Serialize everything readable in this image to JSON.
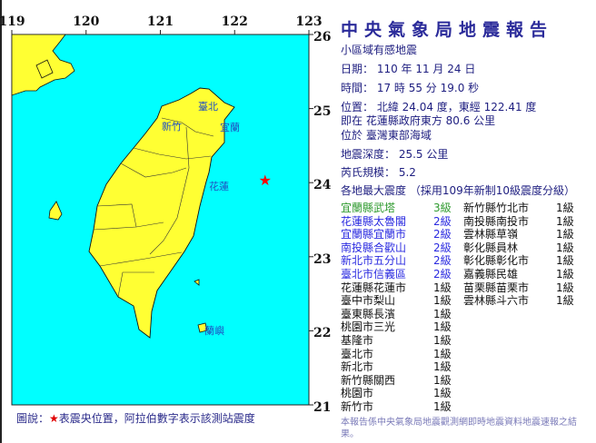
{
  "map": {
    "lon_ticks": [
      "119",
      "120",
      "121",
      "122",
      "123"
    ],
    "lat_ticks": [
      "26",
      "25",
      "24",
      "23",
      "22",
      "21"
    ],
    "sea_color": "#00ffff",
    "land_color": "#ffff33",
    "epicenter_color": "#ff0000",
    "epicenter_icon": "red-star-icon",
    "epicenter": {
      "lat": 24.04,
      "lon": 122.41
    },
    "place_labels": [
      "臺北",
      "新竹",
      "宜蘭",
      "花蓮",
      "蘭嶼"
    ],
    "legend": {
      "prefix": "圖說：",
      "star": "★",
      "text": "表震央位置，阿拉伯數字表示該測站震度"
    }
  },
  "report": {
    "title": "中央氣象局地震報告",
    "type": "小區域有感地震",
    "date": "日期： 110 年 11 月 24 日",
    "time": "時間： 17 時 55 分 19.0 秒",
    "location": "位置： 北緯 24.04 度，東經 122.41 度",
    "relative": "即在 花蓮縣政府東方 80.6 公里",
    "region": "位於 臺灣東部海域",
    "depth": "地震深度： 25.5 公里",
    "magnitude": "芮氏規模： 5.2",
    "intensity_header": "各地最大震度 （採用109年新制10級震度分級）",
    "stations_left": [
      {
        "name": "宜蘭縣武塔",
        "level": "3級",
        "lv": 3
      },
      {
        "name": "花蓮縣太魯閣",
        "level": "2級",
        "lv": 2
      },
      {
        "name": "宜蘭縣宜蘭市",
        "level": "2級",
        "lv": 2
      },
      {
        "name": "南投縣合歡山",
        "level": "2級",
        "lv": 2
      },
      {
        "name": "新北市五分山",
        "level": "2級",
        "lv": 2
      },
      {
        "name": "臺北市信義區",
        "level": "2級",
        "lv": 2
      },
      {
        "name": "花蓮縣花蓮市",
        "level": "1級",
        "lv": 1
      },
      {
        "name": "臺中市梨山",
        "level": "1級",
        "lv": 1
      },
      {
        "name": "臺東縣長濱",
        "level": "1級",
        "lv": 1
      },
      {
        "name": "桃園市三光",
        "level": "1級",
        "lv": 1
      },
      {
        "name": "基隆市",
        "level": "1級",
        "lv": 1
      },
      {
        "name": "臺北市",
        "level": "1級",
        "lv": 1
      },
      {
        "name": "新北市",
        "level": "1級",
        "lv": 1
      },
      {
        "name": "新竹縣關西",
        "level": "1級",
        "lv": 1
      },
      {
        "name": "桃園市",
        "level": "1級",
        "lv": 1
      },
      {
        "name": "新竹市",
        "level": "1級",
        "lv": 1
      }
    ],
    "stations_right": [
      {
        "name": "新竹縣竹北市",
        "level": "1級",
        "lv": 1
      },
      {
        "name": "南投縣南投市",
        "level": "1級",
        "lv": 1
      },
      {
        "name": "雲林縣草嶺",
        "level": "1級",
        "lv": 1
      },
      {
        "name": "彰化縣員林",
        "level": "1級",
        "lv": 1
      },
      {
        "name": "彰化縣彰化市",
        "level": "1級",
        "lv": 1
      },
      {
        "name": "嘉義縣民雄",
        "level": "1級",
        "lv": 1
      },
      {
        "name": "苗栗縣苗栗市",
        "level": "1級",
        "lv": 1
      },
      {
        "name": "雲林縣斗六市",
        "level": "1級",
        "lv": 1
      }
    ],
    "footnote": "本報告係中央氣象局地震觀測網即時地震資料地震速報之結果。",
    "colors": {
      "title": "#2b2b9a",
      "level3": "#2e9a2e",
      "level2": "#2a2ae0",
      "level1": "#111111"
    }
  }
}
